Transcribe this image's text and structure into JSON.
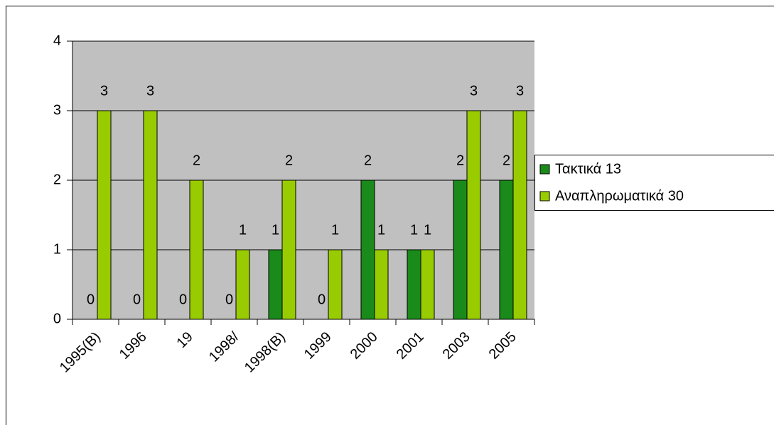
{
  "chart_data": {
    "type": "bar",
    "categories": [
      "1995(B)",
      "1996",
      "19",
      "1998/",
      "1998(B)",
      "1999",
      "2000",
      "2001",
      "2003",
      "2005"
    ],
    "series": [
      {
        "name": "Τακτικά 13",
        "color": "#1a8a1a",
        "values": [
          0,
          0,
          0,
          0,
          1,
          0,
          2,
          1,
          2,
          2
        ]
      },
      {
        "name": "Αναπληρωματικά 30",
        "color": "#99cc00",
        "values": [
          3,
          3,
          2,
          1,
          2,
          1,
          1,
          1,
          3,
          3
        ]
      }
    ],
    "ylim": [
      0,
      4
    ],
    "yticks": [
      0,
      1,
      2,
      3,
      4
    ],
    "grid": true,
    "legend": "right"
  }
}
